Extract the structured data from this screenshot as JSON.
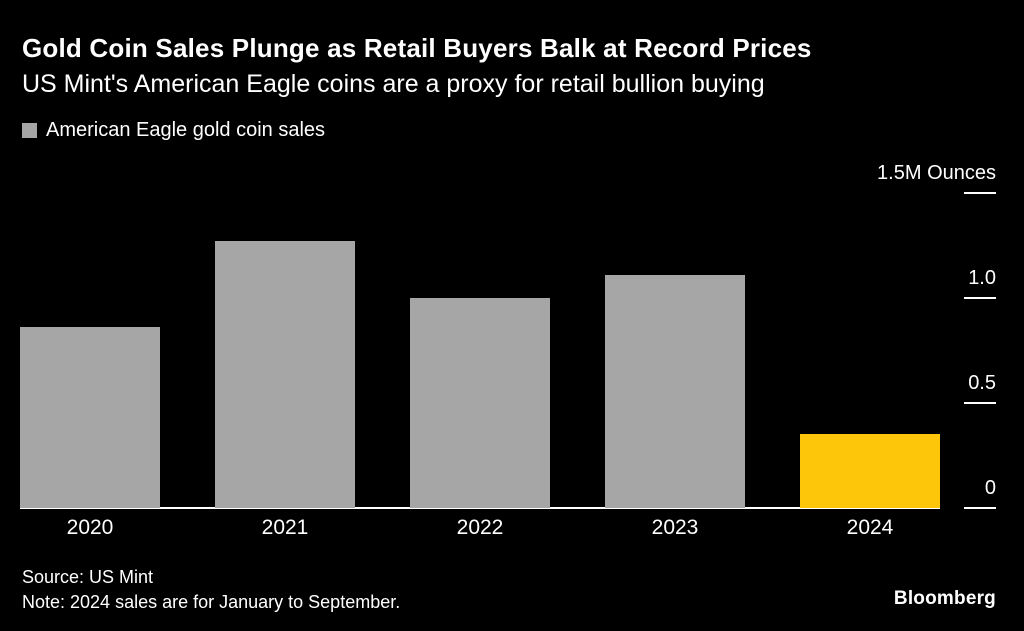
{
  "header": {
    "title": "Gold Coin Sales Plunge as Retail Buyers Balk at Record Prices",
    "subtitle": "US Mint's American Eagle coins are a proxy for retail bullion buying"
  },
  "legend": {
    "label": "American Eagle gold coin sales",
    "swatch_color": "#a6a6a6"
  },
  "footer": {
    "source": "Source: US Mint",
    "note": "Note: 2024 sales are for January to September.",
    "brand": "Bloomberg"
  },
  "chart_data": {
    "type": "bar",
    "categories": [
      "2020",
      "2021",
      "2022",
      "2023",
      "2024"
    ],
    "values": [
      0.86,
      1.27,
      1.0,
      1.11,
      0.35
    ],
    "title": "Gold Coin Sales Plunge as Retail Buyers Balk at Record Prices",
    "subtitle": "US Mint's American Eagle coins are a proxy for retail bullion buying",
    "legend": "American Eagle gold coin sales",
    "xlabel": "",
    "ylabel": "Ounces",
    "yticks": [
      0,
      0.5,
      1.0,
      1.5
    ],
    "ytick_labels": [
      "0",
      "0.5",
      "1.0",
      "1.5M Ounces"
    ],
    "ylim": [
      0,
      1.66
    ],
    "grid": "right-tick-marks-only",
    "legend_position": "top-left",
    "bar_color": "#a6a6a6",
    "highlight_color": "#fdc60b",
    "highlight_index": 4
  }
}
